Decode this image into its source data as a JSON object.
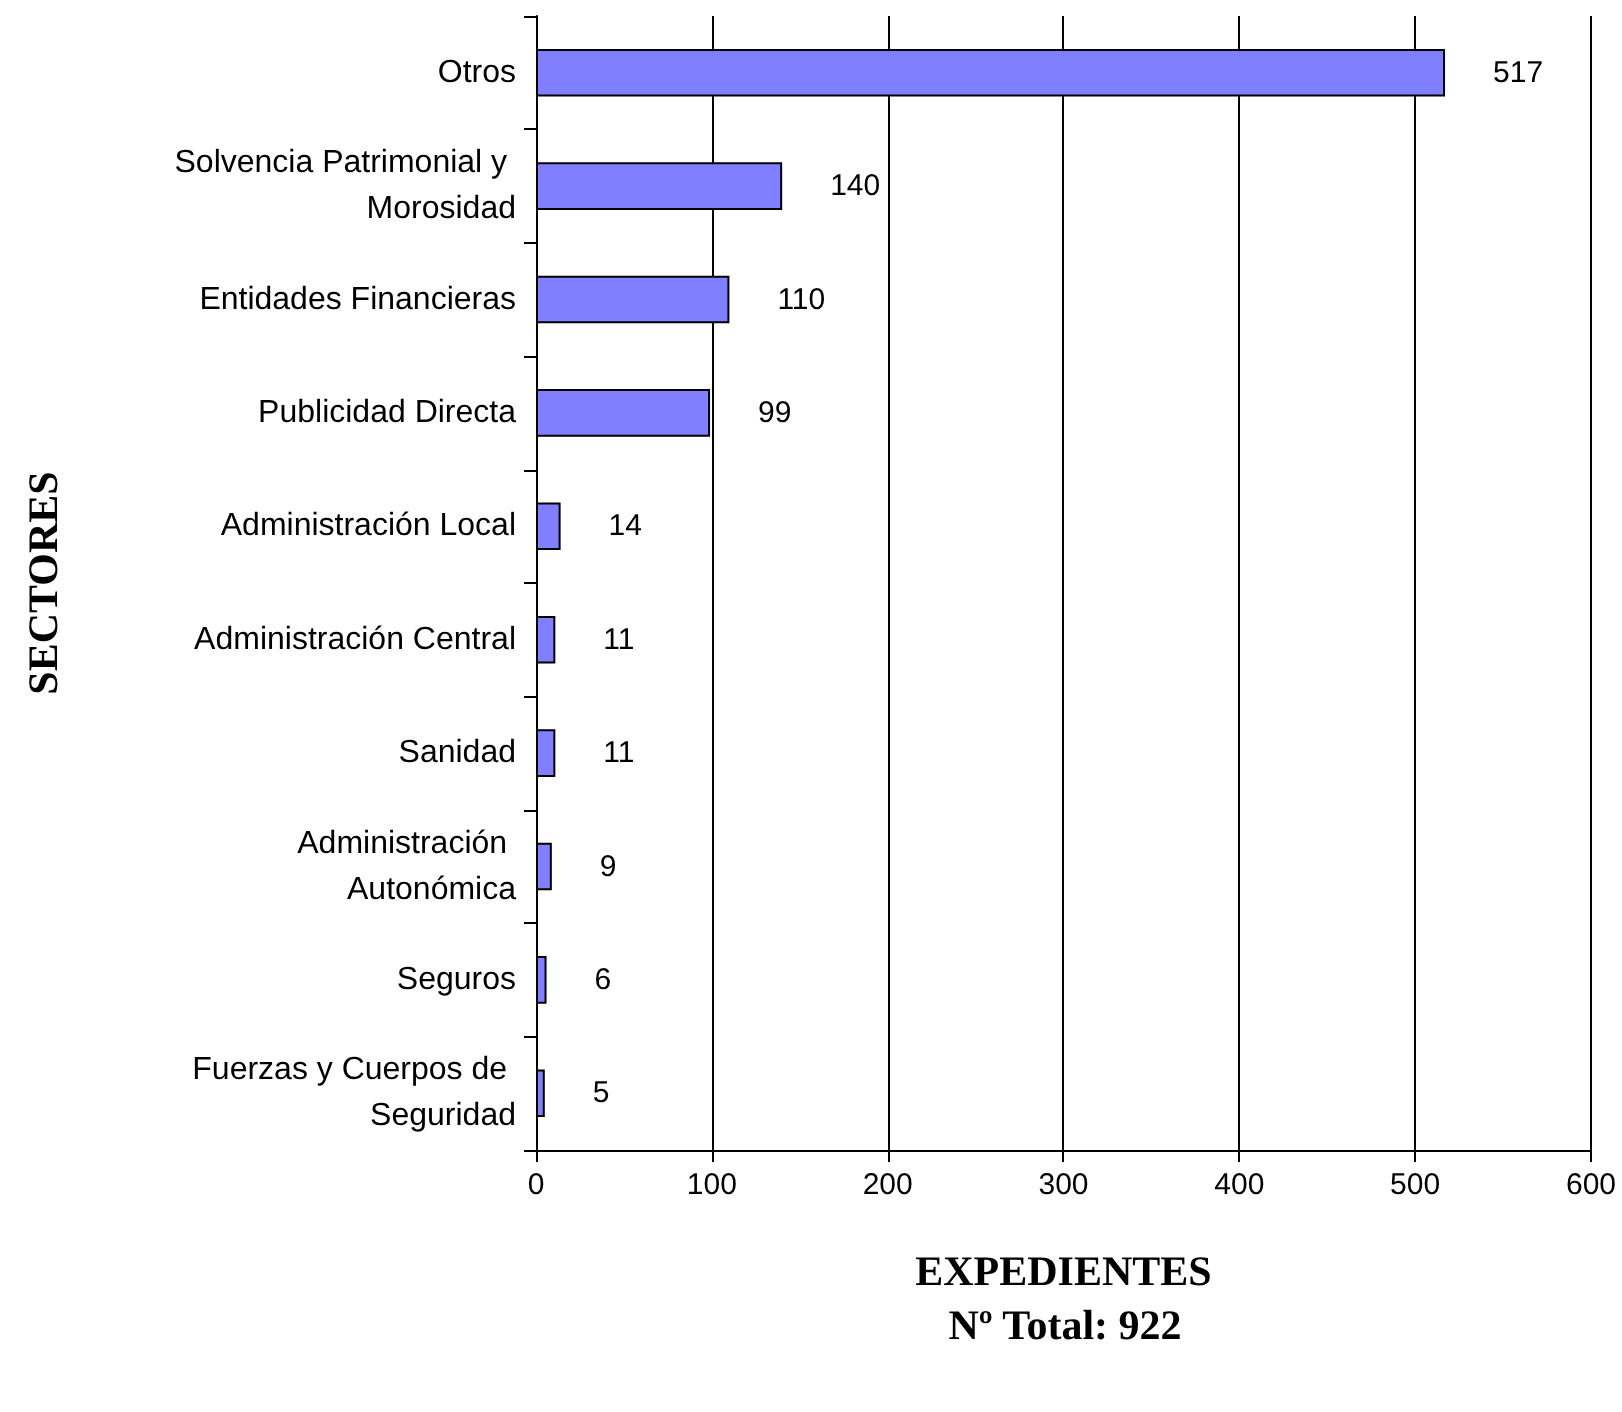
{
  "chart_data": {
    "type": "bar",
    "orientation": "horizontal",
    "xlabel": "EXPEDIENTES",
    "ylabel": "SECTORES",
    "annotations": [
      "Nº Total: 922"
    ],
    "categories": [
      "Otros",
      "Solvencia Patrimonial y Morosidad",
      "Entidades Financieras",
      "Publicidad Directa",
      "Administración Local",
      "Administración Central",
      "Sanidad",
      "Administración Autonómica",
      "Seguros",
      "Fuerzas y Cuerpos de Seguridad"
    ],
    "values": [
      517,
      140,
      110,
      99,
      14,
      11,
      11,
      9,
      6,
      5
    ],
    "color": "#7f7fff",
    "xlim": [
      0,
      600
    ],
    "xticks": [
      0,
      100,
      200,
      300,
      400,
      500,
      600
    ],
    "grid": "x",
    "data_labels": true
  }
}
